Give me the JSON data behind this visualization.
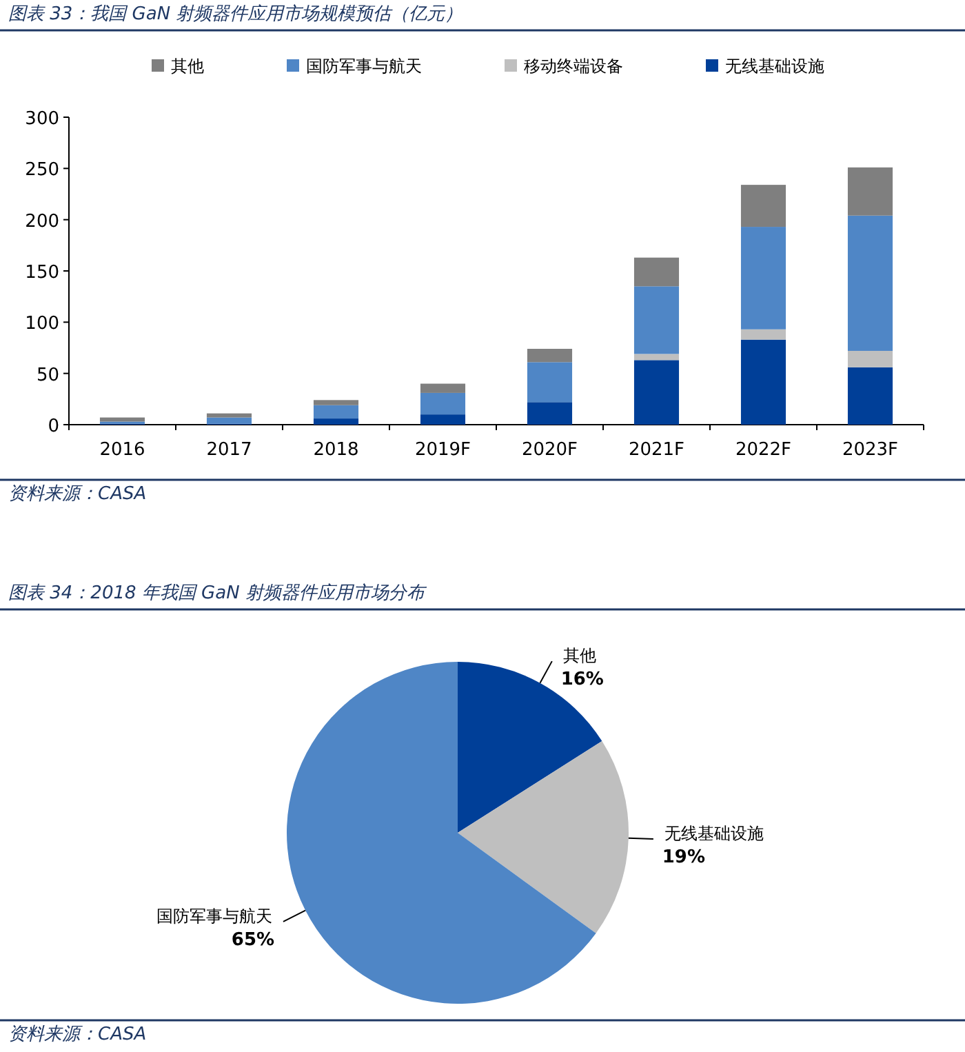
{
  "chart_data": [
    {
      "type": "bar",
      "title": "图表 33：我国 GaN 射频器件应用市场规模预估（亿元）",
      "categories": [
        "2016",
        "2017",
        "2018",
        "2019F",
        "2020F",
        "2021F",
        "2022F",
        "2023F"
      ],
      "stacked": true,
      "legend": "top",
      "ylim": [
        0,
        300
      ],
      "yticks": [
        0,
        50,
        100,
        150,
        200,
        250,
        300
      ],
      "series": [
        {
          "name": "无线基础设施",
          "color": "#003f98",
          "values": [
            1,
            1,
            6,
            10,
            22,
            63,
            83,
            56
          ]
        },
        {
          "name": "移动终端设备",
          "color": "#bfbfbf",
          "values": [
            0,
            0,
            0,
            0,
            0,
            6,
            10,
            16
          ]
        },
        {
          "name": "国防军事与航天",
          "color": "#4f86c6",
          "values": [
            2,
            6,
            13,
            21,
            39,
            66,
            100,
            132
          ]
        },
        {
          "name": "其他",
          "color": "#7f7f7f",
          "values": [
            4,
            4,
            5,
            9,
            13,
            28,
            41,
            47
          ]
        }
      ],
      "annotations": [
        "资料来源：CASA"
      ]
    },
    {
      "type": "pie",
      "title": "图表 34：2018 年我国 GaN 射频器件应用市场分布",
      "categories": [
        "其他",
        "无线基础设施",
        "国防军事与航天"
      ],
      "values": [
        16,
        19,
        65
      ],
      "value_labels": [
        "16%",
        "19%",
        "65%"
      ],
      "colors": [
        "#003f98",
        "#bfbfbf",
        "#4f86c6"
      ],
      "annotations": [
        "资料来源：CASA"
      ]
    }
  ]
}
